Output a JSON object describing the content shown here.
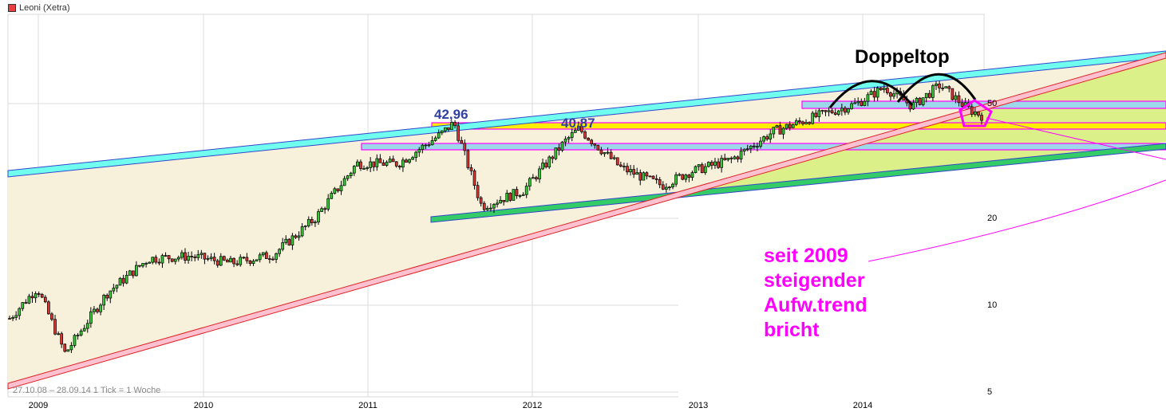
{
  "header": {
    "title": "Leoni (Xetra)",
    "legend_color": "#e84040"
  },
  "footer": {
    "range": "27.10.08 – 28.09.14   1 Tick = 1 Woche"
  },
  "axes": {
    "x_labels": [
      {
        "label": "2009",
        "x": 48
      },
      {
        "label": "2010",
        "x": 255
      },
      {
        "label": "2011",
        "x": 461
      },
      {
        "label": "2012",
        "x": 667
      },
      {
        "label": "2013",
        "x": 875
      },
      {
        "label": "2014",
        "x": 1081
      }
    ],
    "y_labels": [
      {
        "label": "50",
        "value": 50
      },
      {
        "label": "20",
        "value": 20
      },
      {
        "label": "10",
        "value": 10
      },
      {
        "label": "5",
        "value": 5
      }
    ]
  },
  "annotations": {
    "high_2011": "42,96",
    "high_2012": "40,87",
    "pattern": "Doppeltop",
    "trend_line1": "seit 2009",
    "trend_line2": "steigender",
    "trend_line3": "Aufw.trend",
    "trend_line4": "bricht"
  },
  "colors": {
    "up_candle": "#33cc33",
    "down_candle": "#dd3333",
    "channel_fill": "#f7f0da",
    "upper_band": "#70ffee",
    "lower_band": "#33cc66",
    "support_band": "#ffee00",
    "resistance_band": "#9dd8ea",
    "trend_band": "#ffc0d0",
    "magenta": "#ff00ff",
    "breakout_fill": "#dcf08a"
  },
  "chart_data": {
    "type": "candlestick",
    "title": "Leoni (Xetra)",
    "subtitle": "27.10.08 – 28.09.14, 1 Tick = 1 Woche",
    "xlabel": "",
    "ylabel": "",
    "y_scale": "log",
    "ylim": [
      4.8,
      80
    ],
    "y_ticks": [
      5,
      10,
      20,
      50
    ],
    "x_ticks": [
      "2009",
      "2010",
      "2011",
      "2012",
      "2013",
      "2014"
    ],
    "grid": true,
    "key_levels": {
      "high_2011": 42.96,
      "high_2012": 40.87,
      "resistance_zone": [
        34.5,
        36.5
      ],
      "support_zone": [
        39.5,
        41.5
      ],
      "upper_zone_2014": [
        48,
        50
      ]
    },
    "weekly_close_approx": [
      {
        "date": "2008-11",
        "close": 9.0
      },
      {
        "date": "2009-01",
        "close": 11.5
      },
      {
        "date": "2009-03",
        "close": 6.8
      },
      {
        "date": "2009-06",
        "close": 11.0
      },
      {
        "date": "2009-09",
        "close": 14.5
      },
      {
        "date": "2009-12",
        "close": 14.8
      },
      {
        "date": "2010-03",
        "close": 14.0
      },
      {
        "date": "2010-06",
        "close": 15.0
      },
      {
        "date": "2010-09",
        "close": 20.0
      },
      {
        "date": "2010-12",
        "close": 31.0
      },
      {
        "date": "2011-03",
        "close": 31.0
      },
      {
        "date": "2011-06",
        "close": 39.0
      },
      {
        "date": "2011-07",
        "close": 42.96
      },
      {
        "date": "2011-09",
        "close": 22.0
      },
      {
        "date": "2011-12",
        "close": 25.0
      },
      {
        "date": "2012-03",
        "close": 37.0
      },
      {
        "date": "2012-04",
        "close": 40.87
      },
      {
        "date": "2012-07",
        "close": 30.0
      },
      {
        "date": "2012-10",
        "close": 26.0
      },
      {
        "date": "2012-12",
        "close": 29.0
      },
      {
        "date": "2013-03",
        "close": 32.0
      },
      {
        "date": "2013-06",
        "close": 40.0
      },
      {
        "date": "2013-09",
        "close": 45.0
      },
      {
        "date": "2013-12",
        "close": 50.0
      },
      {
        "date": "2014-02",
        "close": 57.0
      },
      {
        "date": "2014-04",
        "close": 49.0
      },
      {
        "date": "2014-06",
        "close": 58.0
      },
      {
        "date": "2014-08",
        "close": 48.0
      },
      {
        "date": "2014-09",
        "close": 45.5
      }
    ]
  }
}
